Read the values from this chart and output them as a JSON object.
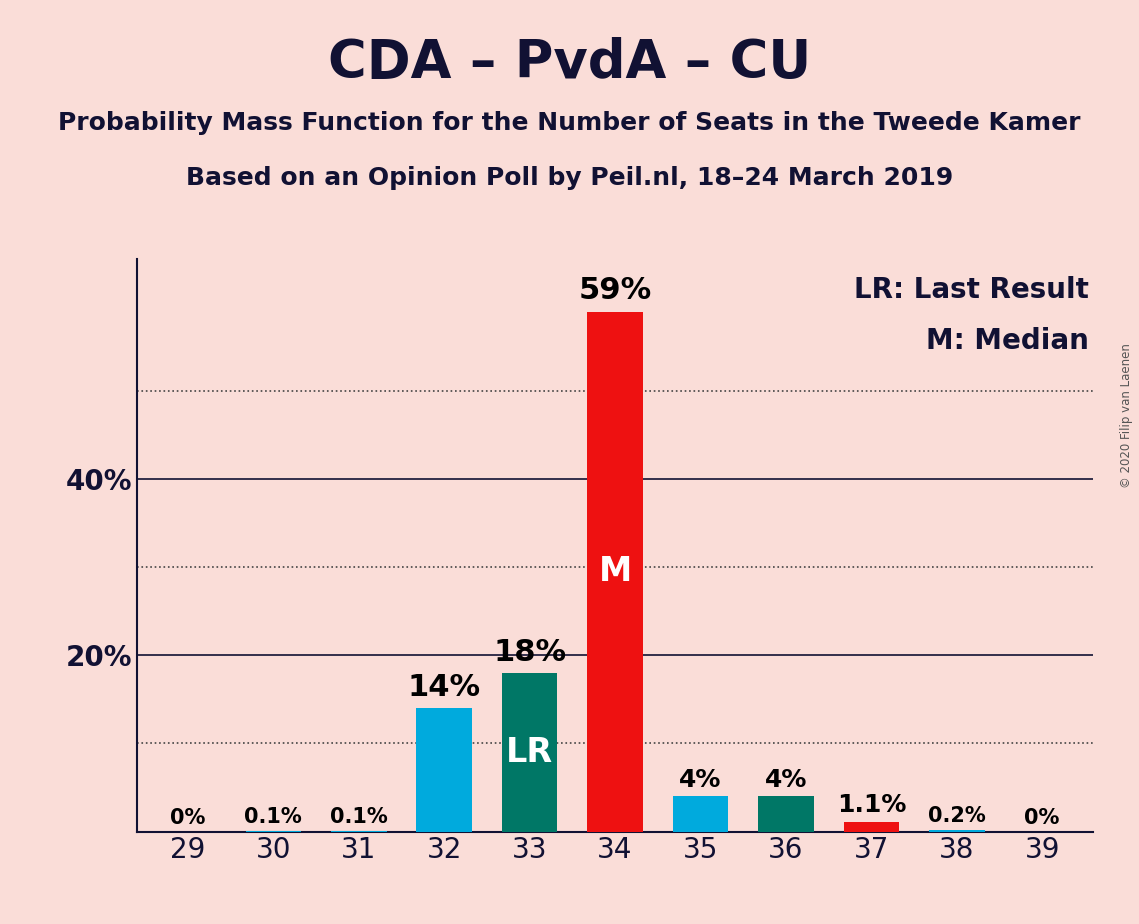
{
  "title": "CDA – PvdA – CU",
  "subtitle1": "Probability Mass Function for the Number of Seats in the Tweede Kamer",
  "subtitle2": "Based on an Opinion Poll by Peil.nl, 18–24 March 2019",
  "copyright": "© 2020 Filip van Laenen",
  "categories": [
    29,
    30,
    31,
    32,
    33,
    34,
    35,
    36,
    37,
    38,
    39
  ],
  "values": [
    0.0,
    0.1,
    0.1,
    14.0,
    18.0,
    59.0,
    4.0,
    4.0,
    1.1,
    0.2,
    0.0
  ],
  "labels": [
    "0%",
    "0.1%",
    "0.1%",
    "14%",
    "18%",
    "59%",
    "4%",
    "4%",
    "1.1%",
    "0.2%",
    "0%"
  ],
  "bar_colors": [
    "#00AADD",
    "#00AADD",
    "#00AADD",
    "#00AADD",
    "#007766",
    "#EE1111",
    "#00AADD",
    "#007766",
    "#EE1111",
    "#00AADD",
    "#00AADD"
  ],
  "ylim": [
    0,
    65
  ],
  "solid_lines": [
    20,
    40
  ],
  "dotted_lines": [
    10,
    30,
    50
  ],
  "background_color": "#FADDD8",
  "legend_text1": "LR: Last Result",
  "legend_text2": "M: Median",
  "title_fontsize": 38,
  "subtitle_fontsize": 18,
  "label_fontsize_large": 22,
  "label_fontsize_medium": 18,
  "label_fontsize_small": 15,
  "tick_fontsize": 20,
  "legend_fontsize": 20,
  "ylabel_20": "20%",
  "ylabel_40": "40%"
}
